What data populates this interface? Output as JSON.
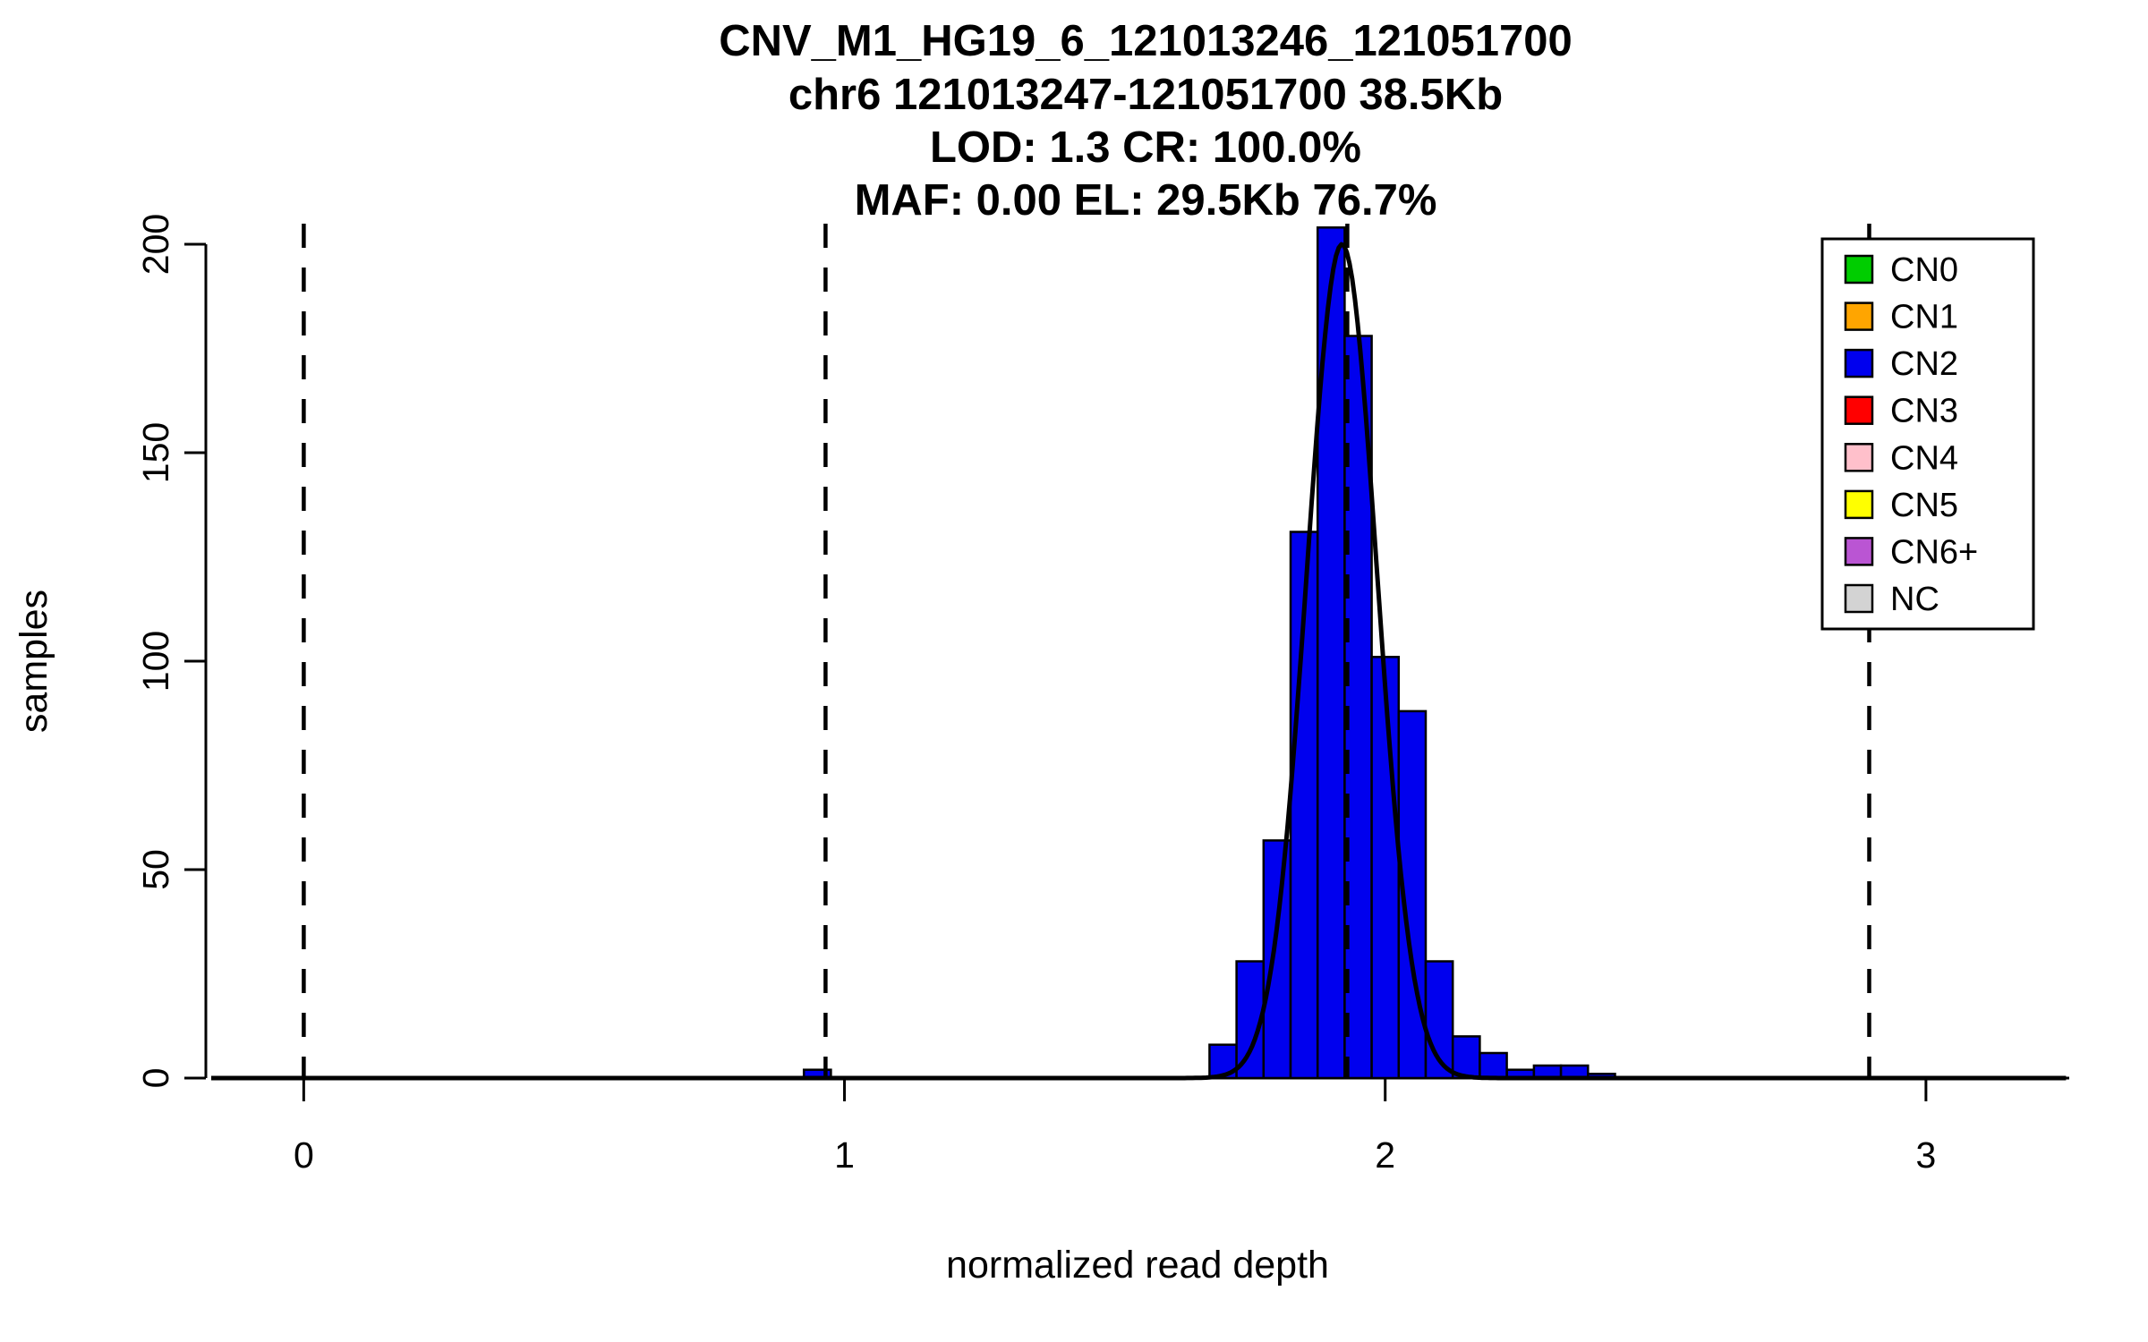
{
  "figure": {
    "background": "#FFFFFF"
  },
  "chart_data": {
    "type": "bar",
    "subtype": "histogram",
    "title_lines": [
      "CNV_M1_HG19_6_121013246_121051700",
      "chr6 121013247-121051700 38.5Kb",
      "LOD: 1.3 CR: 100.0%",
      "MAF: 0.00 EL: 29.5Kb 76.7%"
    ],
    "xlabel": "normalized read depth",
    "ylabel": "samples",
    "x_ticks": [
      0,
      1,
      2,
      3
    ],
    "y_ticks": [
      0,
      50,
      100,
      150,
      200
    ],
    "xlim": [
      -0.181,
      3.265
    ],
    "ylim": [
      0,
      206
    ],
    "grid": false,
    "legend_position": "top-right",
    "bin_width": 0.05,
    "bar_color": "#0000EE",
    "bar_edge_color": "#000000",
    "bins": [
      {
        "x": 0.925,
        "count": 2
      },
      {
        "x": 1.675,
        "count": 8
      },
      {
        "x": 1.725,
        "count": 28
      },
      {
        "x": 1.775,
        "count": 57
      },
      {
        "x": 1.825,
        "count": 131
      },
      {
        "x": 1.875,
        "count": 204
      },
      {
        "x": 1.925,
        "count": 178
      },
      {
        "x": 1.975,
        "count": 101
      },
      {
        "x": 2.025,
        "count": 88
      },
      {
        "x": 2.075,
        "count": 28
      },
      {
        "x": 2.125,
        "count": 10
      },
      {
        "x": 2.175,
        "count": 6
      },
      {
        "x": 2.225,
        "count": 2
      },
      {
        "x": 2.275,
        "count": 3
      },
      {
        "x": 2.325,
        "count": 3
      },
      {
        "x": 2.375,
        "count": 1
      }
    ],
    "dashed_lines_x": [
      0,
      0.965,
      1.93,
      2.895
    ],
    "dashed_line_color": "#000000",
    "curve": {
      "type": "gaussian",
      "mean": 1.92,
      "sd": 0.065,
      "peak": 200,
      "color": "#000000"
    },
    "legend": {
      "items": [
        {
          "label": "CN0",
          "color": "#00CD00"
        },
        {
          "label": "CN1",
          "color": "#FFA500"
        },
        {
          "label": "CN2",
          "color": "#0000EE"
        },
        {
          "label": "CN3",
          "color": "#FF0000"
        },
        {
          "label": "CN4",
          "color": "#FFC0CB"
        },
        {
          "label": "CN5",
          "color": "#FFFF00"
        },
        {
          "label": "CN6+",
          "color": "#BA55D3"
        },
        {
          "label": "NC",
          "color": "#D3D3D3"
        }
      ]
    }
  }
}
